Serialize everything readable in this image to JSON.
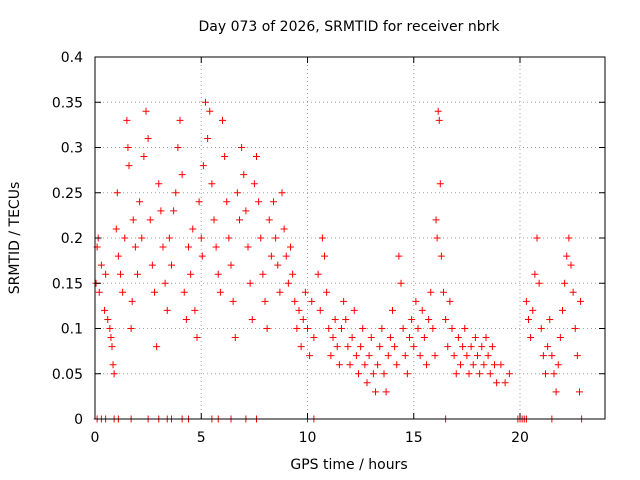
{
  "chart_data": {
    "type": "scatter",
    "title": "Day 073 of 2026, SRMTID for receiver nbrk",
    "xlabel": "GPS time / hours",
    "ylabel": "SRMTID / TECUs",
    "xlim": [
      0,
      24
    ],
    "ylim": [
      0,
      0.4
    ],
    "x_ticks": [
      0,
      5,
      10,
      15,
      20
    ],
    "x_tick_labels": [
      "0",
      "5",
      "10",
      "15",
      "20"
    ],
    "y_ticks": [
      0,
      0.05,
      0.1,
      0.15,
      0.2,
      0.25,
      0.3,
      0.35,
      0.4
    ],
    "y_tick_labels": [
      "0",
      "0.05",
      "0.1",
      "0.15",
      "0.2",
      "0.25",
      "0.3",
      "0.35",
      "0.4"
    ],
    "grid": true,
    "marker": "+",
    "color": "#ff0000",
    "series": [
      {
        "name": "SRMTID",
        "points": [
          [
            0.05,
            0.15
          ],
          [
            0.1,
            0.19
          ],
          [
            0.15,
            0.2
          ],
          [
            0.2,
            0.14
          ],
          [
            0.3,
            0.17
          ],
          [
            0.45,
            0.12
          ],
          [
            0.5,
            0.16
          ],
          [
            0.6,
            0.11
          ],
          [
            0.7,
            0.1
          ],
          [
            0.75,
            0.09
          ],
          [
            0.8,
            0.08
          ],
          [
            0.85,
            0.06
          ],
          [
            0.9,
            0.05
          ],
          [
            1.0,
            0.21
          ],
          [
            1.05,
            0.25
          ],
          [
            1.1,
            0.18
          ],
          [
            1.2,
            0.16
          ],
          [
            1.3,
            0.14
          ],
          [
            1.4,
            0.2
          ],
          [
            1.5,
            0.33
          ],
          [
            1.55,
            0.3
          ],
          [
            1.6,
            0.28
          ],
          [
            1.7,
            0.1
          ],
          [
            1.75,
            0.13
          ],
          [
            1.8,
            0.22
          ],
          [
            1.9,
            0.19
          ],
          [
            2.0,
            0.16
          ],
          [
            2.1,
            0.24
          ],
          [
            2.2,
            0.2
          ],
          [
            2.3,
            0.29
          ],
          [
            2.4,
            0.34
          ],
          [
            2.5,
            0.31
          ],
          [
            2.6,
            0.22
          ],
          [
            2.7,
            0.17
          ],
          [
            2.8,
            0.14
          ],
          [
            2.9,
            0.08
          ],
          [
            3.0,
            0.26
          ],
          [
            3.1,
            0.23
          ],
          [
            3.2,
            0.19
          ],
          [
            3.3,
            0.15
          ],
          [
            3.4,
            0.12
          ],
          [
            3.5,
            0.2
          ],
          [
            3.6,
            0.17
          ],
          [
            3.7,
            0.23
          ],
          [
            3.8,
            0.25
          ],
          [
            3.9,
            0.3
          ],
          [
            4.0,
            0.33
          ],
          [
            4.1,
            0.27
          ],
          [
            4.2,
            0.14
          ],
          [
            4.3,
            0.11
          ],
          [
            4.4,
            0.19
          ],
          [
            4.5,
            0.16
          ],
          [
            4.6,
            0.21
          ],
          [
            4.7,
            0.12
          ],
          [
            4.8,
            0.09
          ],
          [
            4.9,
            0.24
          ],
          [
            5.0,
            0.2
          ],
          [
            5.05,
            0.18
          ],
          [
            5.1,
            0.28
          ],
          [
            5.2,
            0.35
          ],
          [
            5.3,
            0.31
          ],
          [
            5.4,
            0.34
          ],
          [
            5.5,
            0.26
          ],
          [
            5.6,
            0.22
          ],
          [
            5.7,
            0.19
          ],
          [
            5.8,
            0.16
          ],
          [
            5.9,
            0.14
          ],
          [
            6.0,
            0.33
          ],
          [
            6.1,
            0.29
          ],
          [
            6.2,
            0.24
          ],
          [
            6.3,
            0.2
          ],
          [
            6.4,
            0.17
          ],
          [
            6.5,
            0.13
          ],
          [
            6.6,
            0.09
          ],
          [
            6.7,
            0.25
          ],
          [
            6.8,
            0.22
          ],
          [
            6.9,
            0.3
          ],
          [
            7.0,
            0.27
          ],
          [
            7.1,
            0.23
          ],
          [
            7.2,
            0.19
          ],
          [
            7.3,
            0.15
          ],
          [
            7.4,
            0.11
          ],
          [
            7.5,
            0.26
          ],
          [
            7.6,
            0.29
          ],
          [
            7.7,
            0.24
          ],
          [
            7.8,
            0.2
          ],
          [
            7.9,
            0.16
          ],
          [
            8.0,
            0.13
          ],
          [
            8.1,
            0.1
          ],
          [
            8.2,
            0.22
          ],
          [
            8.3,
            0.18
          ],
          [
            8.4,
            0.24
          ],
          [
            8.5,
            0.2
          ],
          [
            8.6,
            0.17
          ],
          [
            8.7,
            0.14
          ],
          [
            8.8,
            0.25
          ],
          [
            8.9,
            0.21
          ],
          [
            9.0,
            0.18
          ],
          [
            9.1,
            0.15
          ],
          [
            9.2,
            0.19
          ],
          [
            9.3,
            0.16
          ],
          [
            9.4,
            0.13
          ],
          [
            9.5,
            0.1
          ],
          [
            9.6,
            0.12
          ],
          [
            9.7,
            0.08
          ],
          [
            9.8,
            0.11
          ],
          [
            9.9,
            0.14
          ],
          [
            10.0,
            0.1
          ],
          [
            10.1,
            0.07
          ],
          [
            10.2,
            0.13
          ],
          [
            10.3,
            0.09
          ],
          [
            10.5,
            0.16
          ],
          [
            10.6,
            0.12
          ],
          [
            10.7,
            0.2
          ],
          [
            10.8,
            0.18
          ],
          [
            10.9,
            0.14
          ],
          [
            11.0,
            0.1
          ],
          [
            11.1,
            0.07
          ],
          [
            11.2,
            0.09
          ],
          [
            11.3,
            0.11
          ],
          [
            11.4,
            0.08
          ],
          [
            11.5,
            0.06
          ],
          [
            11.6,
            0.1
          ],
          [
            11.7,
            0.13
          ],
          [
            11.8,
            0.11
          ],
          [
            11.9,
            0.08
          ],
          [
            12.0,
            0.06
          ],
          [
            12.1,
            0.09
          ],
          [
            12.2,
            0.12
          ],
          [
            12.3,
            0.07
          ],
          [
            12.4,
            0.05
          ],
          [
            12.5,
            0.08
          ],
          [
            12.6,
            0.1
          ],
          [
            12.7,
            0.06
          ],
          [
            12.8,
            0.04
          ],
          [
            12.9,
            0.07
          ],
          [
            13.0,
            0.09
          ],
          [
            13.1,
            0.05
          ],
          [
            13.2,
            0.03
          ],
          [
            13.3,
            0.06
          ],
          [
            13.4,
            0.08
          ],
          [
            13.5,
            0.1
          ],
          [
            13.6,
            0.05
          ],
          [
            13.7,
            0.03
          ],
          [
            13.8,
            0.07
          ],
          [
            13.9,
            0.09
          ],
          [
            14.0,
            0.12
          ],
          [
            14.1,
            0.08
          ],
          [
            14.2,
            0.06
          ],
          [
            14.3,
            0.18
          ],
          [
            14.4,
            0.15
          ],
          [
            14.5,
            0.1
          ],
          [
            14.6,
            0.07
          ],
          [
            14.7,
            0.05
          ],
          [
            14.8,
            0.09
          ],
          [
            14.9,
            0.11
          ],
          [
            15.0,
            0.08
          ],
          [
            15.1,
            0.13
          ],
          [
            15.2,
            0.1
          ],
          [
            15.3,
            0.07
          ],
          [
            15.4,
            0.12
          ],
          [
            15.5,
            0.09
          ],
          [
            15.6,
            0.06
          ],
          [
            15.7,
            0.11
          ],
          [
            15.8,
            0.14
          ],
          [
            15.9,
            0.1
          ],
          [
            16.0,
            0.07
          ],
          [
            16.05,
            0.22
          ],
          [
            16.1,
            0.2
          ],
          [
            16.15,
            0.34
          ],
          [
            16.2,
            0.33
          ],
          [
            16.25,
            0.26
          ],
          [
            16.3,
            0.18
          ],
          [
            16.4,
            0.14
          ],
          [
            16.5,
            0.11
          ],
          [
            16.6,
            0.08
          ],
          [
            16.7,
            0.13
          ],
          [
            16.8,
            0.1
          ],
          [
            16.9,
            0.07
          ],
          [
            17.0,
            0.05
          ],
          [
            17.1,
            0.09
          ],
          [
            17.2,
            0.06
          ],
          [
            17.3,
            0.08
          ],
          [
            17.4,
            0.1
          ],
          [
            17.5,
            0.07
          ],
          [
            17.6,
            0.05
          ],
          [
            17.7,
            0.08
          ],
          [
            17.8,
            0.06
          ],
          [
            17.9,
            0.09
          ],
          [
            18.0,
            0.07
          ],
          [
            18.1,
            0.05
          ],
          [
            18.2,
            0.08
          ],
          [
            18.3,
            0.06
          ],
          [
            18.4,
            0.09
          ],
          [
            18.5,
            0.07
          ],
          [
            18.6,
            0.05
          ],
          [
            18.7,
            0.08
          ],
          [
            18.8,
            0.06
          ],
          [
            18.9,
            0.04
          ],
          [
            19.1,
            0.06
          ],
          [
            19.3,
            0.04
          ],
          [
            19.5,
            0.05
          ],
          [
            20.3,
            0.13
          ],
          [
            20.4,
            0.11
          ],
          [
            20.5,
            0.09
          ],
          [
            20.6,
            0.12
          ],
          [
            20.7,
            0.16
          ],
          [
            20.8,
            0.2
          ],
          [
            20.9,
            0.15
          ],
          [
            21.0,
            0.1
          ],
          [
            21.1,
            0.07
          ],
          [
            21.2,
            0.05
          ],
          [
            21.3,
            0.08
          ],
          [
            21.4,
            0.11
          ],
          [
            21.5,
            0.07
          ],
          [
            21.6,
            0.05
          ],
          [
            21.7,
            0.03
          ],
          [
            21.8,
            0.06
          ],
          [
            21.9,
            0.09
          ],
          [
            22.0,
            0.12
          ],
          [
            22.1,
            0.15
          ],
          [
            22.2,
            0.18
          ],
          [
            22.3,
            0.2
          ],
          [
            22.4,
            0.17
          ],
          [
            22.5,
            0.14
          ],
          [
            22.6,
            0.1
          ],
          [
            22.7,
            0.07
          ],
          [
            22.8,
            0.03
          ],
          [
            22.85,
            0.13
          ],
          [
            0.1,
            0.0
          ],
          [
            0.3,
            0.0
          ],
          [
            0.5,
            0.0
          ],
          [
            0.9,
            0.0
          ],
          [
            1.1,
            0.0
          ],
          [
            1.7,
            0.0
          ],
          [
            2.5,
            0.0
          ],
          [
            3.0,
            0.0
          ],
          [
            3.4,
            0.0
          ],
          [
            3.6,
            0.0
          ],
          [
            4.1,
            0.0
          ],
          [
            4.4,
            0.0
          ],
          [
            5.5,
            0.0
          ],
          [
            5.8,
            0.0
          ],
          [
            6.4,
            0.0
          ],
          [
            7.1,
            0.0
          ],
          [
            7.6,
            0.0
          ],
          [
            10.0,
            0.0
          ],
          [
            10.3,
            0.0
          ],
          [
            16.5,
            0.0
          ],
          [
            19.9,
            0.0
          ],
          [
            20.0,
            0.0
          ],
          [
            20.1,
            0.0
          ],
          [
            20.2,
            0.0
          ],
          [
            20.3,
            0.0
          ],
          [
            21.5,
            0.0
          ],
          [
            22.9,
            0.0
          ]
        ]
      }
    ]
  }
}
